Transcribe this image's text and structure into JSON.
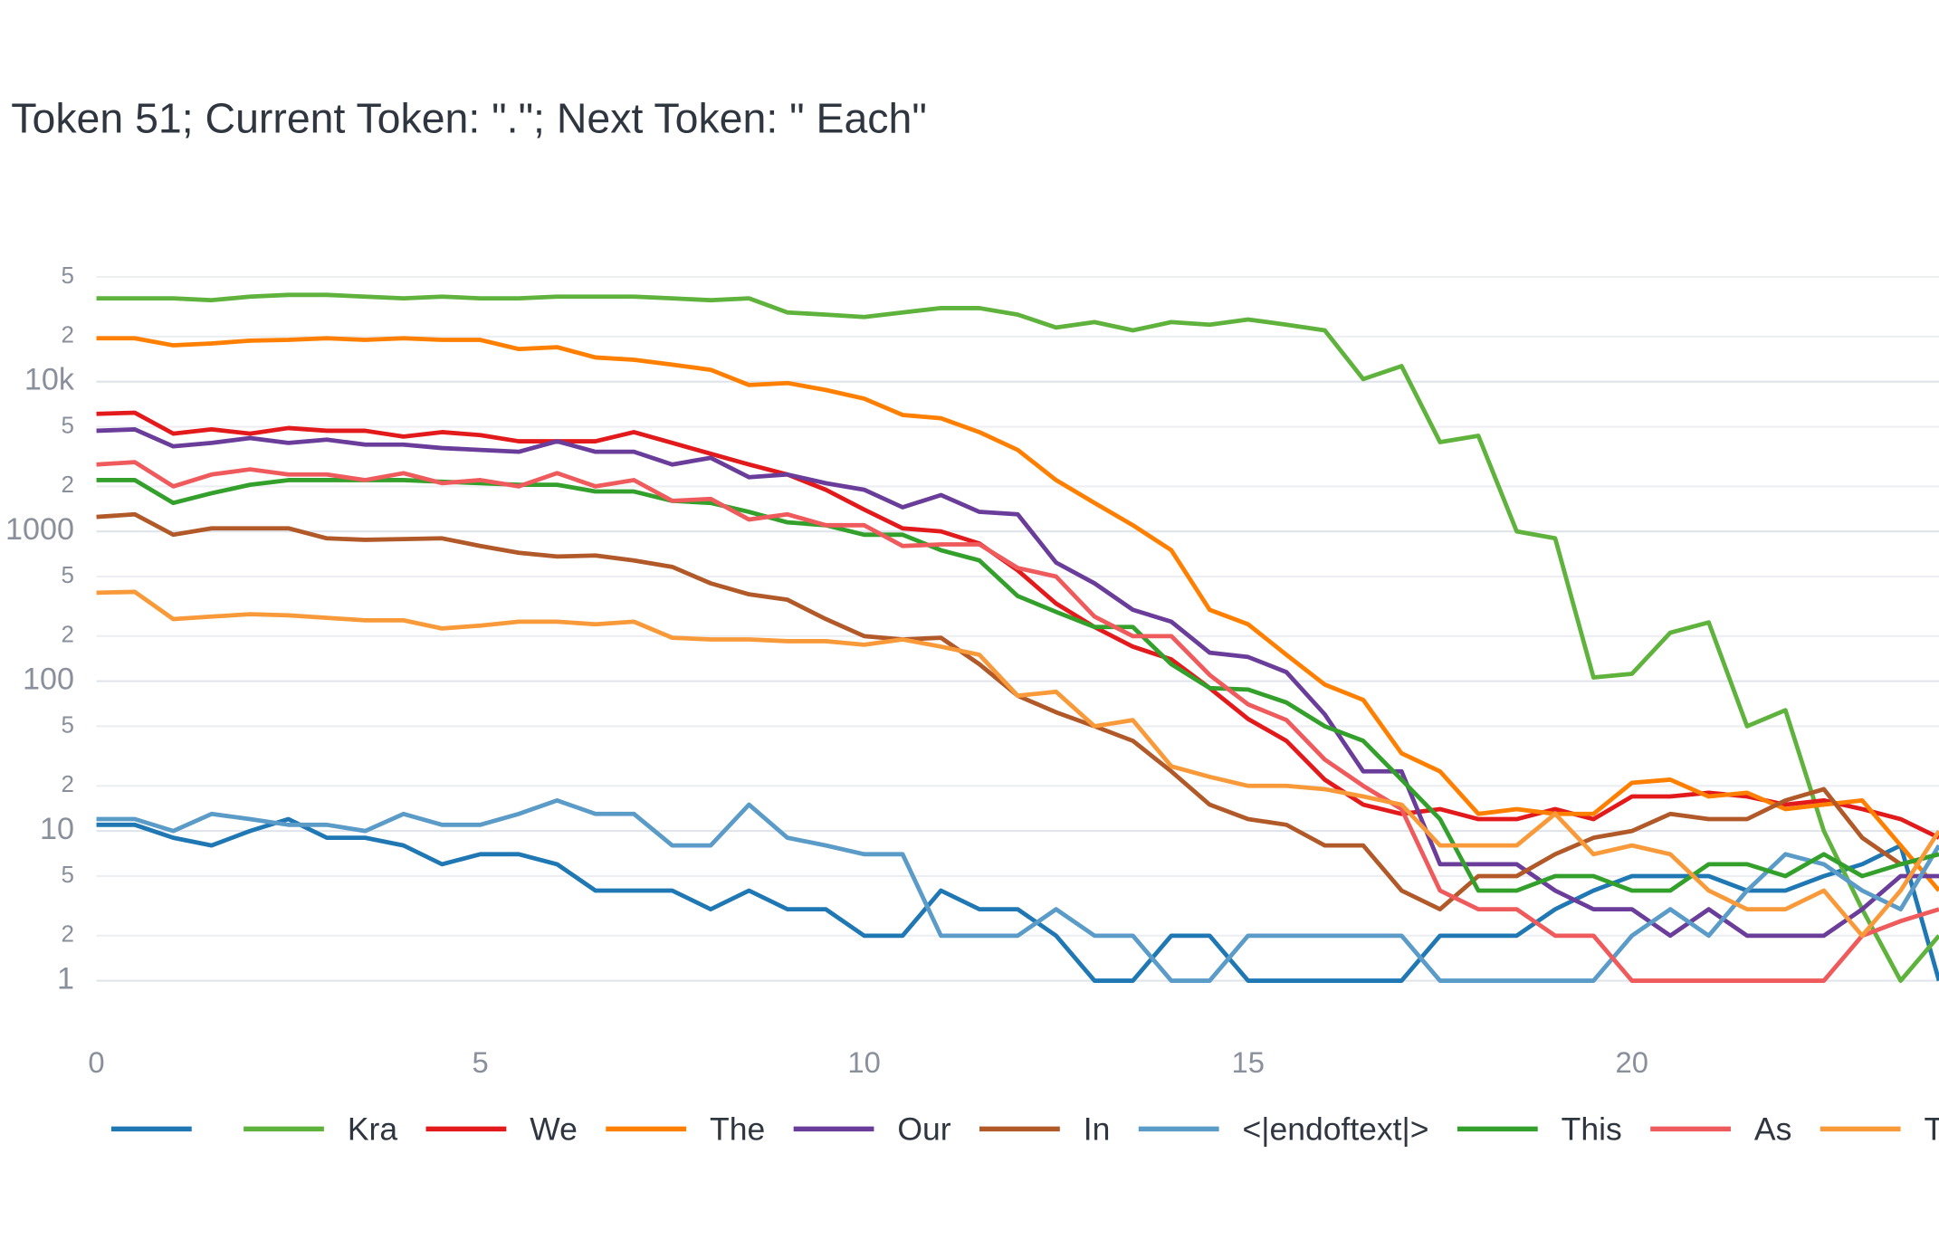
{
  "chart_data": {
    "type": "line",
    "title": "Token 51; Current Token: \".\"; Next Token: \" Each\"",
    "x": [
      0,
      0.5,
      1,
      1.5,
      2,
      2.5,
      3,
      3.5,
      4,
      4.5,
      5,
      5.5,
      6,
      6.5,
      7,
      7.5,
      8,
      8.5,
      9,
      9.5,
      10,
      10.5,
      11,
      11.5,
      12,
      12.5,
      13,
      13.5,
      14,
      14.5,
      15,
      15.5,
      16,
      16.5,
      17,
      17.5,
      18,
      18.5,
      19,
      19.5,
      20,
      20.5,
      21,
      21.5,
      22,
      22.5,
      23,
      23.5,
      24
    ],
    "xlim": [
      0,
      24
    ],
    "xticks": [
      0,
      5,
      10,
      15,
      20
    ],
    "ylim": [
      0.6,
      90000
    ],
    "log_y": true,
    "grid": true,
    "yticks": [
      1,
      2,
      5,
      10,
      {
        "value": 20,
        "label": "2"
      },
      {
        "value": 50,
        "label": "5"
      },
      100,
      {
        "value": 200,
        "label": "2"
      },
      {
        "value": 500,
        "label": "5"
      },
      1000,
      {
        "value": 2000,
        "label": "2"
      },
      {
        "value": 5000,
        "label": "5"
      },
      {
        "value": 10000,
        "label": "10k"
      },
      {
        "value": 20000,
        "label": "2"
      },
      {
        "value": 50000,
        "label": "5"
      }
    ],
    "series": [
      {
        "name": " ",
        "color": "#1f78b4",
        "values": [
          11,
          11,
          9,
          8,
          10,
          12,
          9,
          9,
          8,
          6,
          7,
          7,
          6,
          4,
          4,
          4,
          3,
          4,
          3,
          3,
          2,
          2,
          4,
          3,
          3,
          2,
          1,
          1,
          2,
          2,
          1,
          1,
          1,
          1,
          1,
          2,
          2,
          2,
          3,
          4,
          5,
          5,
          5,
          4,
          4,
          5,
          6,
          8,
          1
        ]
      },
      {
        "name": "Kra",
        "color": "#5fb33d",
        "values": [
          36000,
          36000,
          36000,
          35000,
          37000,
          38000,
          38000,
          37000,
          36000,
          37000,
          36000,
          36000,
          37000,
          37000,
          37000,
          36000,
          35000,
          36000,
          29000,
          28000,
          27000,
          29000,
          31000,
          31000,
          28000,
          23000,
          25000,
          22000,
          25000,
          24000,
          26000,
          24000,
          22000,
          10400,
          12700,
          3950,
          4350,
          1000,
          900,
          106,
          112,
          211,
          247,
          50,
          64,
          10,
          3,
          1,
          2
        ]
      },
      {
        "name": "We",
        "color": "#e31a1c",
        "values": [
          6100,
          6200,
          4500,
          4800,
          4500,
          4900,
          4700,
          4700,
          4300,
          4600,
          4400,
          4000,
          4000,
          4000,
          4600,
          3900,
          3300,
          2800,
          2400,
          1900,
          1400,
          1050,
          1000,
          830,
          550,
          330,
          230,
          170,
          140,
          90,
          56,
          40,
          22,
          15,
          13,
          14,
          12,
          12,
          14,
          12,
          17,
          17,
          18,
          17,
          15,
          16,
          14,
          12,
          9
        ]
      },
      {
        "name": "The",
        "color": "#ff7f00",
        "values": [
          19500,
          19500,
          17500,
          18000,
          18800,
          19000,
          19500,
          19000,
          19500,
          19000,
          19000,
          16500,
          17000,
          14500,
          14000,
          13000,
          12000,
          9500,
          9800,
          8800,
          7700,
          6000,
          5700,
          4600,
          3500,
          2200,
          1550,
          1100,
          750,
          300,
          240,
          150,
          95,
          75,
          33,
          25,
          13,
          14,
          13,
          13,
          21,
          22,
          17,
          18,
          14,
          15,
          16,
          8,
          4
        ]
      },
      {
        "name": "Our",
        "color": "#6a3d9a",
        "values": [
          4700,
          4800,
          3700,
          3900,
          4200,
          3900,
          4100,
          3800,
          3800,
          3600,
          3500,
          3400,
          4000,
          3400,
          3400,
          2800,
          3100,
          2300,
          2400,
          2100,
          1900,
          1450,
          1750,
          1350,
          1300,
          620,
          450,
          300,
          250,
          155,
          145,
          115,
          60,
          25,
          25,
          6,
          6,
          6,
          4,
          3,
          3,
          2,
          3,
          2,
          2,
          2,
          3,
          5,
          5
        ]
      },
      {
        "name": "In",
        "color": "#b15928",
        "values": [
          1250,
          1300,
          950,
          1050,
          1050,
          1050,
          900,
          880,
          890,
          900,
          800,
          720,
          680,
          690,
          640,
          580,
          450,
          380,
          350,
          260,
          200,
          190,
          195,
          130,
          80,
          62,
          50,
          40,
          25,
          15,
          12,
          11,
          8,
          8,
          4,
          3,
          5,
          5,
          7,
          9,
          10,
          13,
          12,
          12,
          16,
          19,
          9,
          6,
          7
        ]
      },
      {
        "name": "<|endoftext|>",
        "color": "#5a9bc8",
        "values": [
          12,
          12,
          10,
          13,
          12,
          11,
          11,
          10,
          13,
          11,
          11,
          13,
          16,
          13,
          13,
          8,
          8,
          15,
          9,
          8,
          7,
          7,
          2,
          2,
          2,
          3,
          2,
          2,
          1,
          1,
          2,
          2,
          2,
          2,
          2,
          1,
          1,
          1,
          1,
          1,
          2,
          3,
          2,
          4,
          7,
          6,
          4,
          3,
          8
        ]
      },
      {
        "name": "This",
        "color": "#33a02c",
        "values": [
          2200,
          2200,
          1550,
          1800,
          2050,
          2200,
          2200,
          2200,
          2200,
          2150,
          2100,
          2050,
          2050,
          1850,
          1850,
          1600,
          1550,
          1350,
          1150,
          1100,
          950,
          950,
          750,
          640,
          370,
          290,
          230,
          230,
          130,
          90,
          88,
          72,
          50,
          40,
          22,
          12,
          4,
          4,
          5,
          5,
          4,
          4,
          6,
          6,
          5,
          7,
          5,
          6,
          7
        ]
      },
      {
        "name": "As",
        "color": "#ef5a5c",
        "values": [
          2800,
          2900,
          2000,
          2400,
          2600,
          2400,
          2400,
          2200,
          2450,
          2100,
          2200,
          2000,
          2450,
          2000,
          2200,
          1600,
          1650,
          1200,
          1300,
          1100,
          1100,
          800,
          820,
          820,
          570,
          500,
          270,
          200,
          200,
          110,
          70,
          55,
          30,
          20,
          14,
          4,
          3,
          3,
          2,
          2,
          1,
          1,
          1,
          1,
          1,
          1,
          2,
          2.5,
          3
        ]
      },
      {
        "name": "Through",
        "color": "#f99a3a",
        "values": [
          390,
          395,
          260,
          270,
          280,
          275,
          265,
          255,
          255,
          225,
          235,
          250,
          250,
          240,
          250,
          195,
          190,
          190,
          185,
          185,
          175,
          190,
          170,
          150,
          80,
          85,
          50,
          55,
          27,
          23,
          20,
          20,
          19,
          17,
          15,
          8,
          8,
          8,
          13,
          7,
          8,
          7,
          4,
          3,
          3,
          4,
          2,
          4,
          10
        ]
      }
    ]
  }
}
